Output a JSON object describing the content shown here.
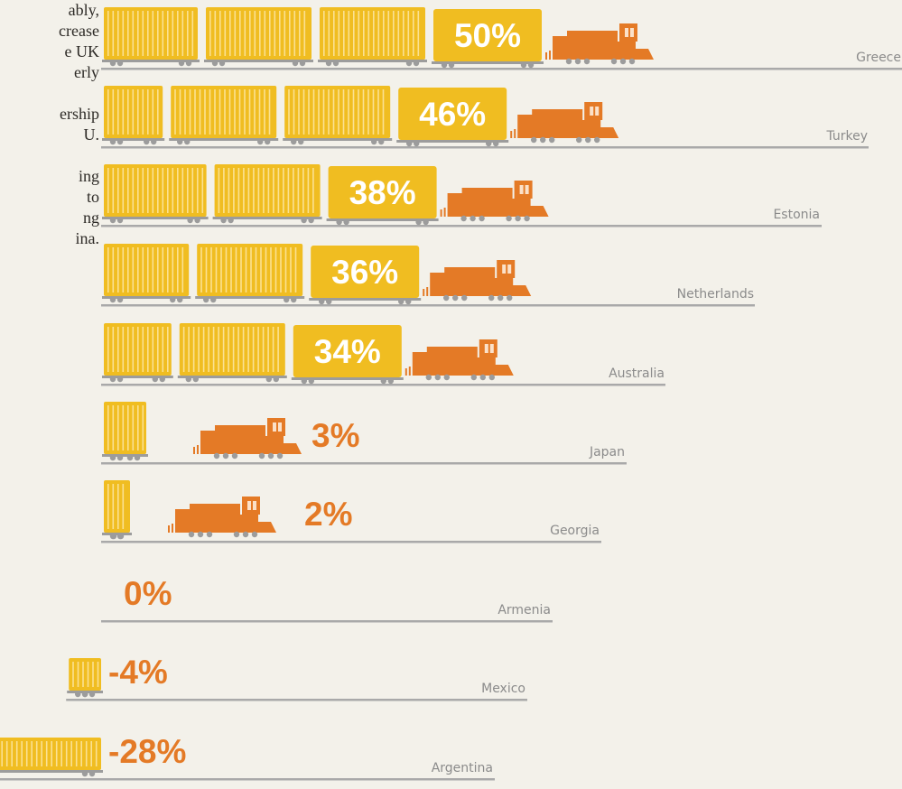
{
  "intro_lines": [
    "ably,",
    "crease",
    "e UK",
    "erly",
    "",
    "ership",
    "U.",
    "",
    "ing",
    " to",
    "ng",
    "ina."
  ],
  "colors": {
    "car": "#f0bd21",
    "car_stripe": "#fde7a4",
    "engine": "#e47a26",
    "negative_label": "#e47a26",
    "positive_label_on_box": "#ffffff",
    "track": "#a9a9a9",
    "wheel": "#9c9c9c"
  },
  "chart_data": {
    "type": "bar",
    "categories": [
      "Greece",
      "Turkey",
      "Estonia",
      "Netherlands",
      "Australia",
      "Japan",
      "Georgia",
      "Armenia",
      "Mexico",
      "Argentina"
    ],
    "values": [
      50,
      46,
      38,
      36,
      34,
      3,
      2,
      0,
      -4,
      -28
    ],
    "value_labels": [
      "50%",
      "46%",
      "38%",
      "36%",
      "34%",
      "3%",
      "2%",
      "0%",
      "-4%",
      "-28%"
    ],
    "grid": false,
    "legend": "none"
  }
}
